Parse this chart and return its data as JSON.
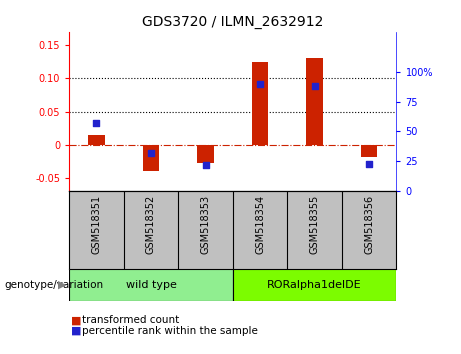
{
  "title": "GDS3720 / ILMN_2632912",
  "samples": [
    "GSM518351",
    "GSM518352",
    "GSM518353",
    "GSM518354",
    "GSM518355",
    "GSM518356"
  ],
  "transformed_count": [
    0.015,
    -0.04,
    -0.028,
    0.125,
    0.13,
    -0.018
  ],
  "percentile_rank": [
    57,
    32,
    22,
    90,
    88,
    23
  ],
  "groups": [
    {
      "label": "wild type",
      "samples_idx": [
        0,
        1,
        2
      ],
      "color": "#90EE90"
    },
    {
      "label": "RORalpha1delDE",
      "samples_idx": [
        3,
        4,
        5
      ],
      "color": "#7CFC00"
    }
  ],
  "ylim_left": [
    -0.07,
    0.17
  ],
  "ylim_right": [
    0,
    133.33
  ],
  "yticks_left": [
    -0.05,
    0.0,
    0.05,
    0.1,
    0.15
  ],
  "yticks_right": [
    0,
    25,
    50,
    75,
    100
  ],
  "ytick_labels_left": [
    "-0.05",
    "0",
    "0.05",
    "0.10",
    "0.15"
  ],
  "ytick_labels_right": [
    "0",
    "25",
    "50",
    "75",
    "100%"
  ],
  "hlines": [
    0.05,
    0.1
  ],
  "bar_color": "#CC2200",
  "dot_color": "#2222CC",
  "zero_line_color": "#CC2200",
  "label_tc": "transformed count",
  "label_pr": "percentile rank within the sample",
  "group_label": "genotype/variation",
  "bar_width": 0.3,
  "dot_size": 25,
  "xlabel_bg": "#C0C0C0",
  "divider_color": "#000000"
}
